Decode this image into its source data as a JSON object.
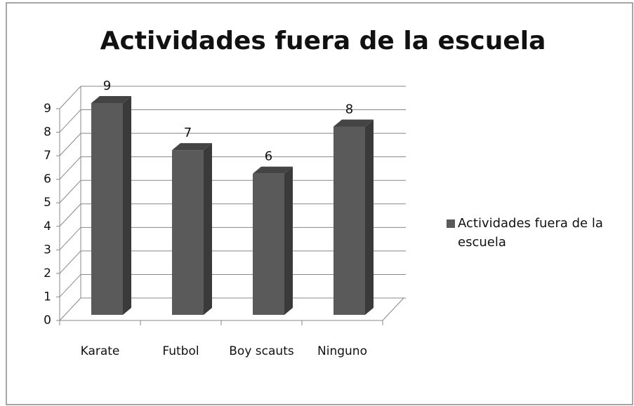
{
  "chart_data": {
    "type": "bar3d",
    "title": "Actividades fuera de la escuela",
    "categories": [
      "Karate",
      "Futbol",
      "Boy scauts",
      "Ninguno"
    ],
    "series": [
      {
        "name": "Actividades fuera de la escuela",
        "color": "#5a5a5a",
        "values": [
          9,
          7,
          6,
          8
        ]
      }
    ],
    "ylim": [
      0,
      9
    ],
    "yticks": [
      0,
      1,
      2,
      3,
      4,
      5,
      6,
      7,
      8,
      9
    ],
    "grid": true,
    "legend": "right"
  }
}
